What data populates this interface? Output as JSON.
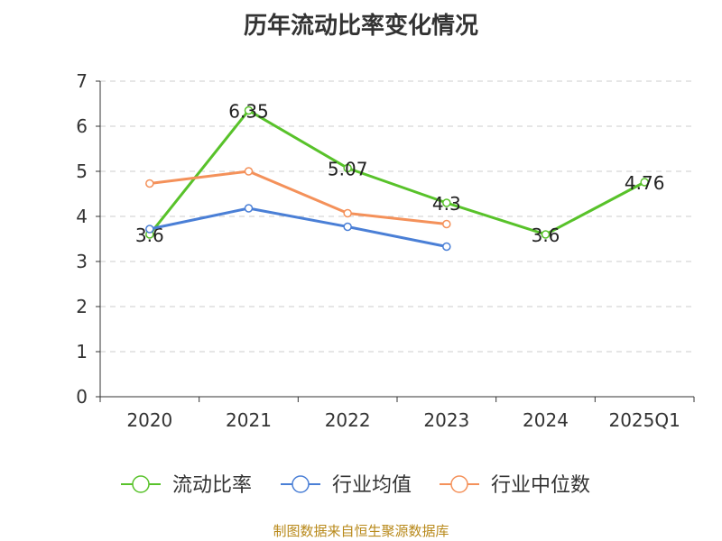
{
  "chart_data": {
    "type": "line",
    "title": "历年流动比率变化情况",
    "categories": [
      "2020",
      "2021",
      "2022",
      "2023",
      "2024",
      "2025Q1"
    ],
    "ylim": [
      0,
      7
    ],
    "yticks": [
      0,
      1,
      2,
      3,
      4,
      5,
      6,
      7
    ],
    "grid": true,
    "legend_position": "bottom",
    "series": [
      {
        "name": "流动比率",
        "color": "#58c22a",
        "values": [
          3.6,
          6.35,
          5.07,
          4.3,
          3.6,
          4.76
        ],
        "labels": [
          "3.6",
          "6.35",
          "5.07",
          "4.3",
          "3.6",
          "4.76"
        ],
        "segments": [
          [
            0,
            4
          ],
          [
            4,
            5
          ]
        ]
      },
      {
        "name": "行业均值",
        "color": "#4a7fd6",
        "values": [
          3.72,
          4.18,
          3.77,
          3.33,
          null,
          null
        ]
      },
      {
        "name": "行业中位数",
        "color": "#f4915a",
        "values": [
          4.73,
          5.0,
          4.07,
          3.83,
          null,
          null
        ]
      }
    ]
  },
  "footer": "制图数据来自恒生聚源数据库"
}
